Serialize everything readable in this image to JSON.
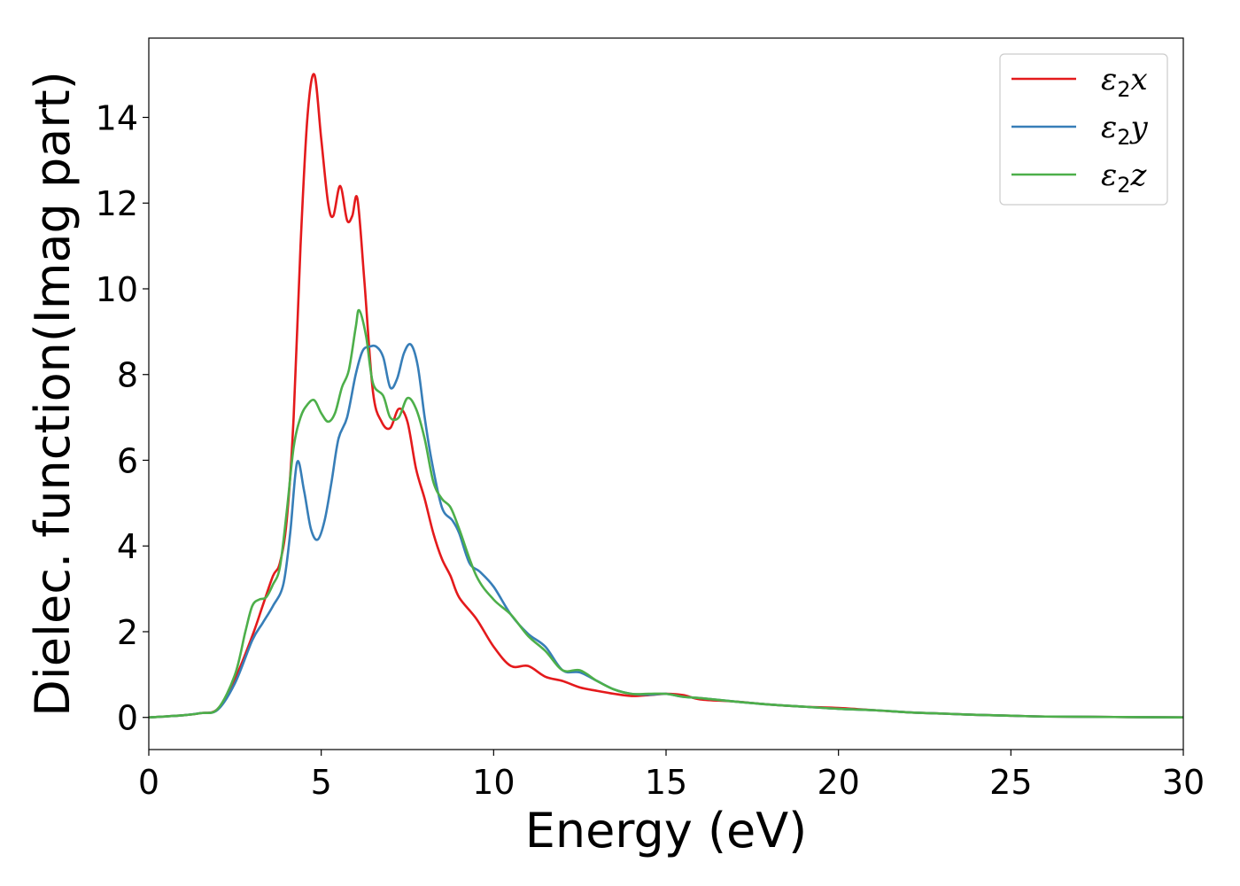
{
  "chart_data": {
    "type": "line",
    "title": "",
    "xlabel": "Energy (eV)",
    "ylabel": "Dielec. function(Imag part)",
    "xlim": [
      0,
      30
    ],
    "ylim": [
      -0.75,
      15.85
    ],
    "xticks": [
      0,
      5,
      10,
      15,
      20,
      25,
      30
    ],
    "xtick_labels": [
      "0",
      "5",
      "10",
      "15",
      "20",
      "25",
      "30"
    ],
    "yticks": [
      0,
      2,
      4,
      6,
      8,
      10,
      12,
      14
    ],
    "ytick_labels": [
      "0",
      "2",
      "4",
      "6",
      "8",
      "10",
      "12",
      "14"
    ],
    "grid": false,
    "legend_position": "top-right",
    "series": [
      {
        "name": "ε₂x",
        "label_base": "ε",
        "label_sub": "2",
        "label_suffix": "x",
        "color": "#e41a1c",
        "x": [
          0,
          1,
          1.5,
          2,
          2.5,
          3,
          3.3,
          3.6,
          3.8,
          4.0,
          4.2,
          4.4,
          4.6,
          4.8,
          5.0,
          5.2,
          5.35,
          5.55,
          5.75,
          5.9,
          6.05,
          6.25,
          6.5,
          6.75,
          7.0,
          7.25,
          7.5,
          7.75,
          8.0,
          8.25,
          8.5,
          8.75,
          9.0,
          9.5,
          10.0,
          10.5,
          11.0,
          11.5,
          12.0,
          12.5,
          13.0,
          13.5,
          14.0,
          14.5,
          15.0,
          15.5,
          16.0,
          17.0,
          18.0,
          19.0,
          20.0,
          21.0,
          22.0,
          23.0,
          24.0,
          25.0,
          26.0,
          28.0,
          30.0
        ],
        "y": [
          0.0,
          0.05,
          0.1,
          0.2,
          0.9,
          1.9,
          2.6,
          3.3,
          3.6,
          4.6,
          7.0,
          11.0,
          14.0,
          15.0,
          13.5,
          12.0,
          11.7,
          12.4,
          11.6,
          11.7,
          12.1,
          10.2,
          7.6,
          6.9,
          6.75,
          7.2,
          6.9,
          5.8,
          5.1,
          4.3,
          3.7,
          3.3,
          2.8,
          2.3,
          1.65,
          1.2,
          1.2,
          0.95,
          0.85,
          0.7,
          0.62,
          0.55,
          0.5,
          0.52,
          0.55,
          0.52,
          0.42,
          0.37,
          0.3,
          0.25,
          0.22,
          0.17,
          0.12,
          0.09,
          0.06,
          0.04,
          0.02,
          0.01,
          0.0
        ]
      },
      {
        "name": "ε₂y",
        "label_base": "ε",
        "label_sub": "2",
        "label_suffix": "y",
        "color": "#377eb8",
        "x": [
          0,
          1,
          1.5,
          2,
          2.5,
          3,
          3.3,
          3.6,
          3.9,
          4.1,
          4.3,
          4.5,
          4.7,
          4.9,
          5.1,
          5.3,
          5.5,
          5.75,
          6.0,
          6.2,
          6.4,
          6.6,
          6.8,
          7.0,
          7.2,
          7.4,
          7.6,
          7.8,
          8.0,
          8.2,
          8.5,
          8.8,
          9.0,
          9.3,
          9.6,
          10.0,
          10.5,
          11.0,
          11.5,
          12.0,
          12.5,
          13.0,
          13.5,
          14.0,
          14.5,
          15.0,
          15.5,
          16.0,
          17.0,
          18.0,
          19.0,
          20.0,
          21.0,
          22.0,
          23.0,
          24.0,
          25.0,
          26.0,
          28.0,
          30.0
        ],
        "y": [
          0.0,
          0.05,
          0.1,
          0.18,
          0.8,
          1.8,
          2.2,
          2.6,
          3.1,
          4.3,
          5.95,
          5.3,
          4.4,
          4.15,
          4.6,
          5.5,
          6.5,
          7.0,
          8.0,
          8.55,
          8.65,
          8.65,
          8.4,
          7.7,
          7.9,
          8.5,
          8.7,
          8.2,
          7.0,
          6.0,
          4.9,
          4.6,
          4.3,
          3.6,
          3.4,
          3.05,
          2.4,
          1.95,
          1.65,
          1.1,
          1.05,
          0.85,
          0.65,
          0.55,
          0.53,
          0.55,
          0.48,
          0.45,
          0.37,
          0.3,
          0.25,
          0.2,
          0.17,
          0.12,
          0.09,
          0.06,
          0.04,
          0.02,
          0.01,
          0.0
        ]
      },
      {
        "name": "ε₂z",
        "label_base": "ε",
        "label_sub": "2",
        "label_suffix": "z",
        "color": "#4daf4a",
        "x": [
          0,
          1,
          1.5,
          2,
          2.5,
          2.8,
          3.0,
          3.2,
          3.4,
          3.6,
          3.8,
          4.0,
          4.2,
          4.4,
          4.6,
          4.8,
          5.0,
          5.2,
          5.4,
          5.6,
          5.8,
          6.0,
          6.1,
          6.3,
          6.5,
          6.8,
          7.0,
          7.25,
          7.5,
          7.75,
          8.0,
          8.25,
          8.5,
          8.75,
          9.0,
          9.5,
          10.0,
          10.5,
          11.0,
          11.5,
          12.0,
          12.5,
          13.0,
          13.5,
          14.0,
          14.5,
          15.0,
          15.5,
          16.0,
          17.0,
          18.0,
          19.0,
          20.0,
          21.0,
          22.0,
          23.0,
          24.0,
          25.0,
          26.0,
          28.0,
          30.0
        ],
        "y": [
          0.0,
          0.05,
          0.1,
          0.2,
          1.0,
          2.0,
          2.6,
          2.75,
          2.8,
          3.1,
          3.5,
          4.8,
          6.3,
          7.0,
          7.3,
          7.4,
          7.1,
          6.9,
          7.1,
          7.7,
          8.1,
          9.1,
          9.5,
          8.9,
          7.8,
          7.5,
          7.0,
          7.0,
          7.45,
          7.2,
          6.5,
          5.5,
          5.1,
          4.9,
          4.4,
          3.3,
          2.75,
          2.4,
          1.9,
          1.55,
          1.1,
          1.1,
          0.85,
          0.65,
          0.55,
          0.55,
          0.55,
          0.48,
          0.45,
          0.37,
          0.3,
          0.25,
          0.2,
          0.17,
          0.12,
          0.09,
          0.06,
          0.04,
          0.02,
          0.01,
          0.0
        ]
      }
    ]
  }
}
